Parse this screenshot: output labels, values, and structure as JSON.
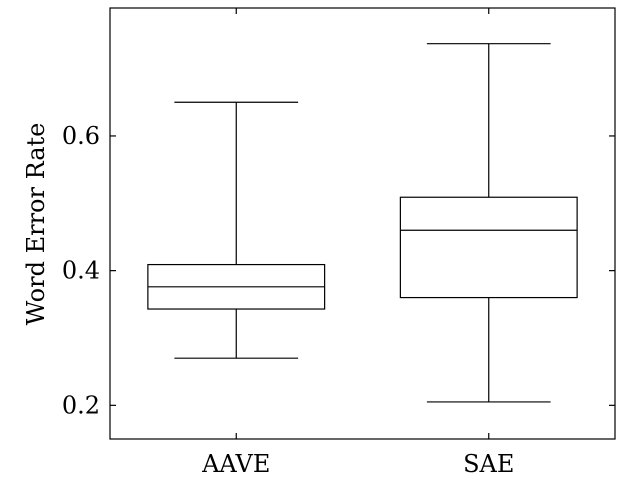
{
  "chart_data": {
    "type": "boxplot",
    "title": "",
    "xlabel": "",
    "ylabel": "Word Error Rate",
    "ylim": [
      0.15,
      0.79
    ],
    "yticks": [
      0.2,
      0.4,
      0.6
    ],
    "ytick_labels": [
      "0.2",
      "0.4",
      "0.6"
    ],
    "categories": [
      "AAVE",
      "SAE"
    ],
    "boxes": [
      {
        "category": "AAVE",
        "min": 0.27,
        "q1": 0.343,
        "median": 0.376,
        "q3": 0.409,
        "max": 0.65
      },
      {
        "category": "SAE",
        "min": 0.205,
        "q1": 0.36,
        "median": 0.46,
        "q3": 0.509,
        "max": 0.737
      }
    ],
    "grid": false,
    "legend": "none"
  }
}
